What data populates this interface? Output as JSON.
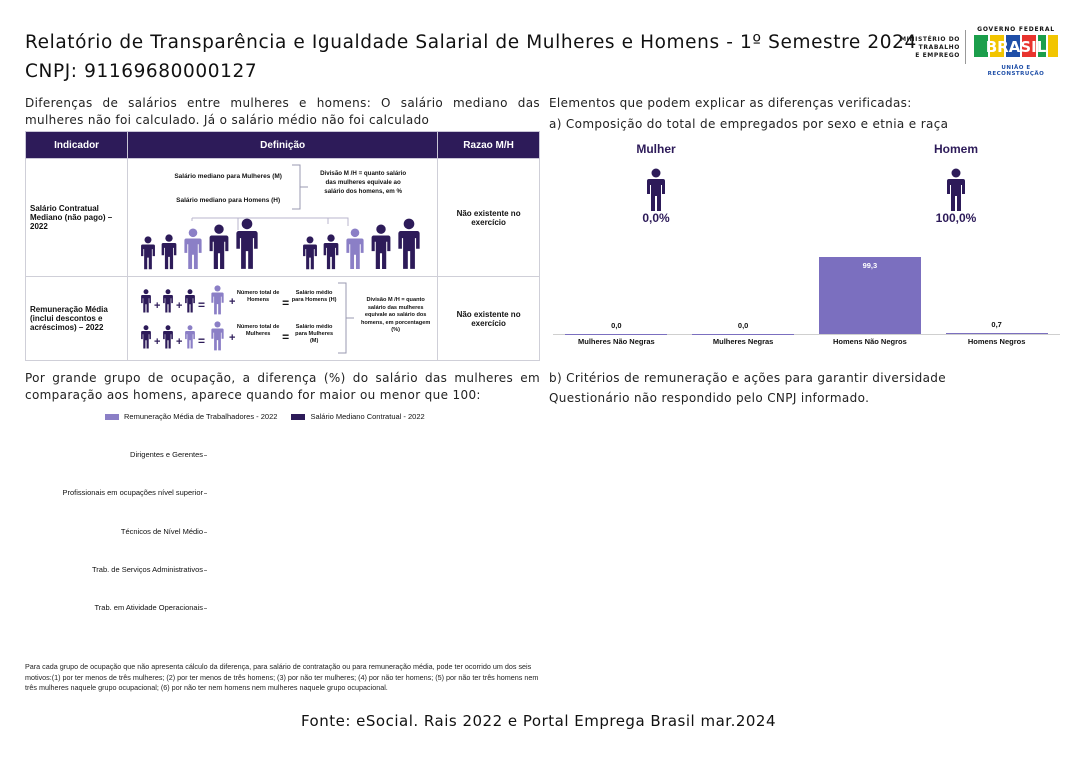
{
  "header": {
    "title": "Relatório de Transparência e Igualdade Salarial de Mulheres e Homens - 1º Semestre 2024",
    "cnpj": "CNPJ: 91169680000127"
  },
  "logos": {
    "ministerio": [
      "MINISTÉRIO DO",
      "TRABALHO",
      "E EMPREGO"
    ],
    "governo": "GOVERNO FEDERAL",
    "brasil": "BRASIL",
    "uniao": "UNIÃO E RECONSTRUÇÃO"
  },
  "salary_diff": {
    "text": "Diferenças de salários entre mulheres e homens: O salário mediano das mulheres não foi calculado. Já o salário médio não foi calculado"
  },
  "table": {
    "headers": [
      "Indicador",
      "Definição",
      "Razao M/H"
    ],
    "row1": {
      "indicator": "Salário Contratual Mediano (não pago) – 2022",
      "def_women": "Salário mediano para Mulheres (M)",
      "def_men": "Salário mediano para Homens (H)",
      "def_division": "Divisão M /H = quanto salário das mulheres equivale ao salário dos homens, em %",
      "ratio": "Não existente no exercício"
    },
    "row2": {
      "indicator": "Remuneração Média (inclui descontos e acréscimos) – 2022",
      "total_men": "Número total de Homens",
      "avg_men": "Salário médio para Homens (H)",
      "total_women": "Número total de Mulheres",
      "avg_women": "Salário médio para Mulheres (M)",
      "def_division": "Divisão M /H = quanto salário das mulheres equivale ao salário dos homens, em porcentagem (%)",
      "ratio": "Não existente no exercício"
    }
  },
  "right": {
    "elements_title": "Elementos que podem explicar as diferenças verificadas:",
    "composition_title": "a) Composição do total de empregados por sexo e etnia e raça",
    "women_label": "Mulher",
    "men_label": "Homem",
    "women_pct": "0,0%",
    "men_pct": "100,0%",
    "criteria_title": "b) Critérios de remuneração e ações para garantir diversidade",
    "criteria_text": "Questionário não respondido pelo CNPJ informado."
  },
  "chart_data": [
    {
      "type": "bar",
      "title": "Composição do total de empregados por sexo e etnia e raça",
      "categories": [
        "Mulheres Não Negras",
        "Mulheres Negras",
        "Homens Não Negros",
        "Homens Negros"
      ],
      "values": [
        0.0,
        0.0,
        99.3,
        0.7
      ],
      "value_labels": [
        "0,0",
        "0,0",
        "99,3",
        "0,7"
      ],
      "ylim": [
        0,
        100
      ],
      "color": "#7b6fbf"
    },
    {
      "type": "bar",
      "orientation": "horizontal",
      "title": "Diferença (%) do salário das mulheres em comparação aos homens por grande grupo de ocupação",
      "legend": [
        "Remuneração Média de Trabalhadores - 2022",
        "Salário Mediano Contratual - 2022"
      ],
      "legend_colors": [
        "#8b7fc6",
        "#2d1b59"
      ],
      "categories": [
        "Dirigentes e Gerentes",
        "Profissionais em ocupações nível superior",
        "Técnicos de Nível Médio",
        "Trab. de Serviços Administrativos",
        "Trab. em Atividade Operacionais"
      ],
      "series": [
        {
          "name": "Remuneração Média de Trabalhadores - 2022",
          "values": [
            null,
            null,
            null,
            null,
            null
          ]
        },
        {
          "name": "Salário Mediano Contratual - 2022",
          "values": [
            null,
            null,
            null,
            null,
            null
          ]
        }
      ]
    }
  ],
  "occupation": {
    "intro": "Por grande grupo de ocupação, a diferença (%) do salário das mulheres em comparação aos homens, aparece quando for maior ou menor que 100:",
    "note": "Para cada grupo de ocupação que não apresenta cálculo da diferença, para salário de contratação ou para remuneração média, pode ter ocorrido um dos seis motivos:(1) por ter menos de três mulheres; (2) por ter menos de três homens; (3) por não ter mulheres; (4) por não ter homens; (5) por não ter três homens nem três mulheres naquele grupo ocupacional; (6) por não ter nem homens nem mulheres naquele grupo ocupacional."
  },
  "footer": {
    "source": "Fonte: eSocial. Rais 2022 e Portal Emprega Brasil mar.2024"
  },
  "colors": {
    "header_bg": "#2d1b59",
    "dark_person": "#2d1b59",
    "light_person": "#8b7fc6",
    "bar": "#7b6fbf"
  }
}
